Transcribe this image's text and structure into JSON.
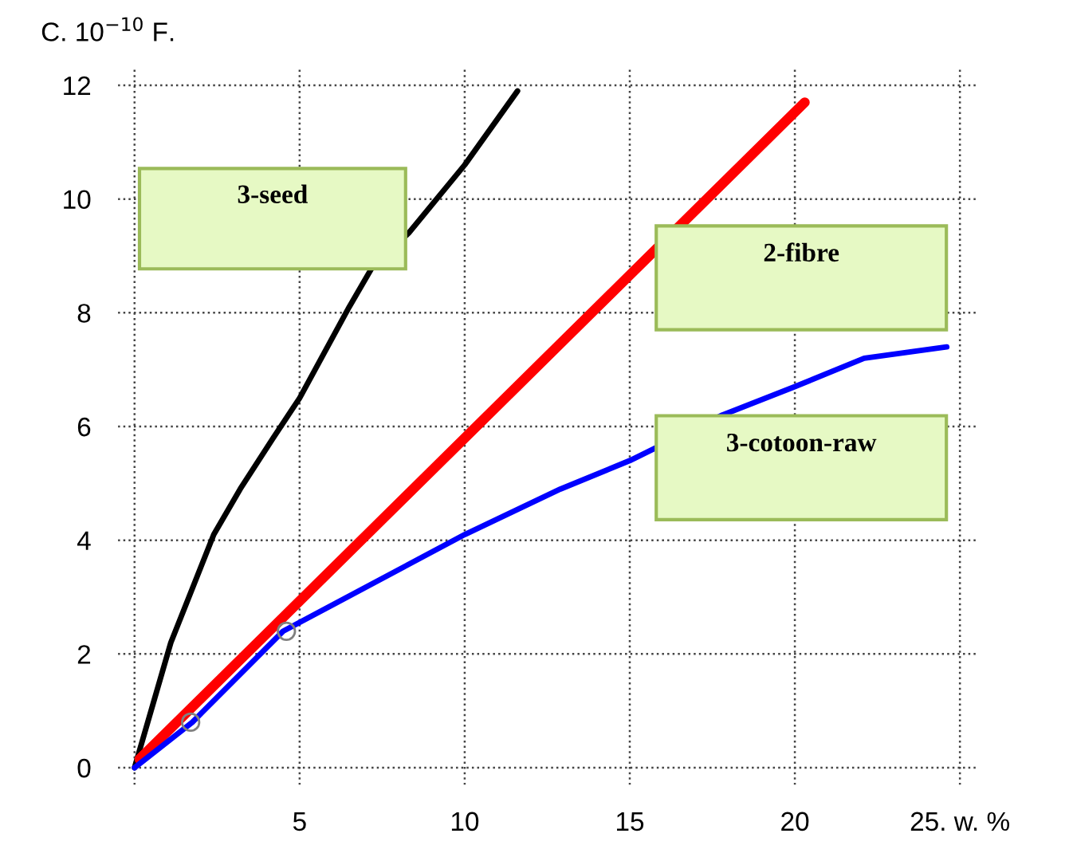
{
  "chart_data": {
    "type": "line",
    "ylabel": "C. 10$^{−10}$ F.",
    "xlim": [
      -0.5,
      25.5
    ],
    "ylim": [
      -0.3,
      12.3
    ],
    "xticks": [
      {
        "value": 0,
        "label": null
      },
      5,
      10,
      15,
      20,
      {
        "value": 25,
        "label": "25. w. %"
      }
    ],
    "yticks": [
      0,
      2,
      4,
      6,
      8,
      10,
      12
    ],
    "grid": true,
    "line_style": "solid",
    "marker": "none",
    "series": [
      {
        "color": "#000000",
        "x": [
          0,
          1.1,
          2.4,
          3.2,
          4.2,
          5.0,
          6.5,
          7.2,
          8.3,
          10.0,
          11.6
        ],
        "values": [
          0,
          2.2,
          4.1,
          4.9,
          5.8,
          6.5,
          8.1,
          8.8,
          9.4,
          10.6,
          11.9
        ]
      },
      {
        "color": "#ff0000",
        "x": [
          0.15,
          20.3
        ],
        "values": [
          0.15,
          11.7
        ]
      },
      {
        "color": "#0000ff",
        "x": [
          0,
          1.75,
          4.5,
          10.0,
          12.9,
          15.0,
          17.8,
          20.0,
          22.1,
          24.6
        ],
        "values": [
          0,
          0.8,
          2.4,
          4.1,
          4.9,
          5.4,
          6.2,
          6.7,
          7.2,
          7.4
        ]
      },
      {
        "type": "scatter",
        "marker": "circle",
        "color": "#808080",
        "x": [
          1.7,
          4.6
        ],
        "values": [
          0.8,
          2.4
        ]
      }
    ],
    "annotations": [
      "3-seed",
      "2-fibre",
      "3-cotoon-raw"
    ]
  }
}
